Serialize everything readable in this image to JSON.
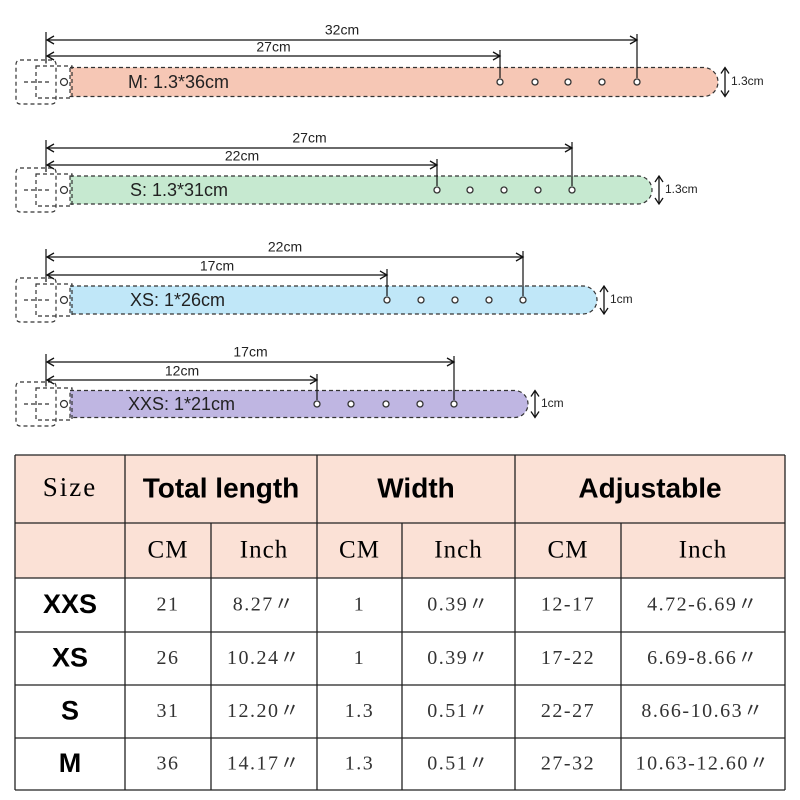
{
  "belts": [
    {
      "label": "M: 1.3*36cm",
      "outer": "32cm",
      "inner": "27cm",
      "width": "1.3cm"
    },
    {
      "label": "S: 1.3*31cm",
      "outer": "27cm",
      "inner": "22cm",
      "width": "1.3cm"
    },
    {
      "label": "XS: 1*26cm",
      "outer": "22cm",
      "inner": "17cm",
      "width": "1cm"
    },
    {
      "label": "XXS: 1*21cm",
      "outer": "17cm",
      "inner": "12cm",
      "width": "1cm"
    }
  ],
  "table": {
    "header": [
      "Size",
      "Total length",
      "Width",
      "Adjustable"
    ],
    "subheader": [
      "CM",
      "Inch",
      "CM",
      "Inch",
      "CM",
      "Inch"
    ],
    "rows": [
      [
        "XXS",
        "21",
        "8.27〃",
        "1",
        "0.39〃",
        "12-17",
        "4.72-6.69〃"
      ],
      [
        "XS",
        "26",
        "10.24〃",
        "1",
        "0.39〃",
        "17-22",
        "6.69-8.66〃"
      ],
      [
        "S",
        "31",
        "12.20〃",
        "1.3",
        "0.51〃",
        "22-27",
        "8.66-10.63〃"
      ],
      [
        "M",
        "36",
        "14.17〃",
        "1.3",
        "0.51〃",
        "27-32",
        "10.63-12.60〃"
      ]
    ]
  }
}
